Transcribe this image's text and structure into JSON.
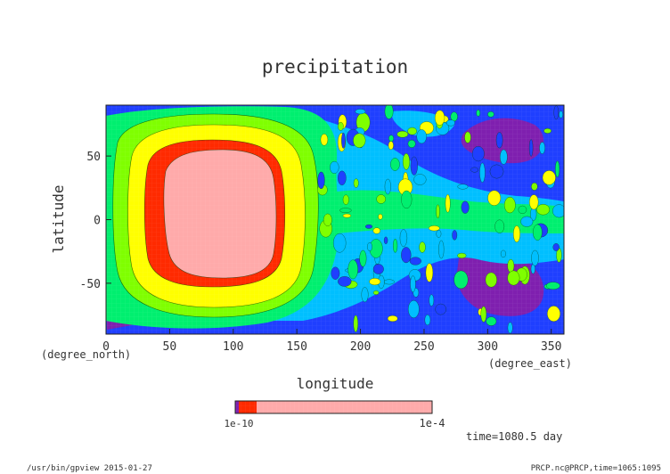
{
  "chart_data": {
    "type": "heatmap",
    "title": "precipitation",
    "xlabel": "longitude",
    "ylabel": "latitude",
    "x_unit": "(degree_east)",
    "y_unit": "(degree_north)",
    "xlim": [
      0,
      360
    ],
    "ylim": [
      -90,
      90
    ],
    "x_ticks": [
      "0",
      "50",
      "100",
      "150",
      "200",
      "250",
      "300",
      "350"
    ],
    "y_ticks": [
      "50",
      "0",
      "-50"
    ],
    "colorbar": {
      "low_labels": "1e-10",
      "high_label": "1e-4",
      "colors": [
        "#7f007f",
        "#1f1fff",
        "#00bfff",
        "#00ff7f",
        "#7fff00",
        "#ffff00",
        "#ff3300",
        "#ffaaaa"
      ]
    },
    "regions": [
      {
        "name": "high-precipitation-core",
        "lon_center": 85,
        "lat_center": 10,
        "color": "#ffaaaa"
      },
      {
        "name": "high-precipitation-ring",
        "lon_center": 85,
        "lat_center": 10,
        "color": "#ff3300"
      },
      {
        "name": "yellow-ring",
        "lon_center": 90,
        "lat_center": 10,
        "color": "#ffff00"
      },
      {
        "name": "green-ring",
        "lon_center": 90,
        "lat_center": 10,
        "color": "#7fff00"
      }
    ]
  },
  "annotations": {
    "time": "time=1080.5 day",
    "program": "/usr/bin/gpview  2015-01-27",
    "source": "PRCP.nc@PRCP,time=1065:1095"
  }
}
